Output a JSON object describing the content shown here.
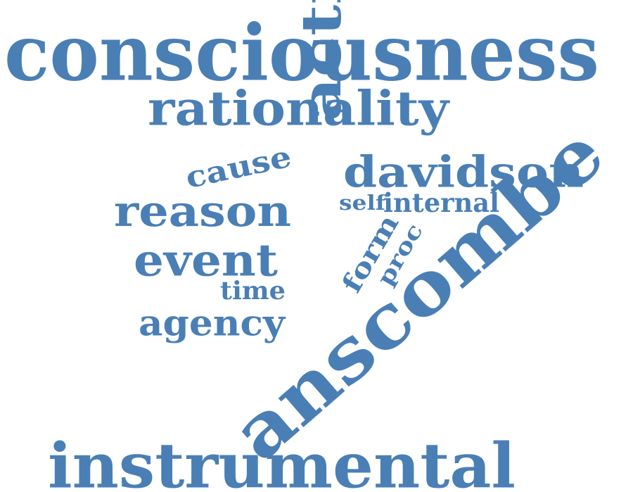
{
  "word_cloud": {
    "color": "#4a7fb5",
    "words": {
      "consciousness": "consciousness",
      "rationality": "rationality",
      "cause": "cause",
      "action": "action",
      "davidson": "davidson",
      "reason": "reason",
      "self": "self",
      "internal": "internal",
      "anscombe": "anscombe",
      "event": "event",
      "form": "form",
      "proc": "proc",
      "time": "time",
      "agency": "agency",
      "instrumental": "instrumental"
    }
  }
}
